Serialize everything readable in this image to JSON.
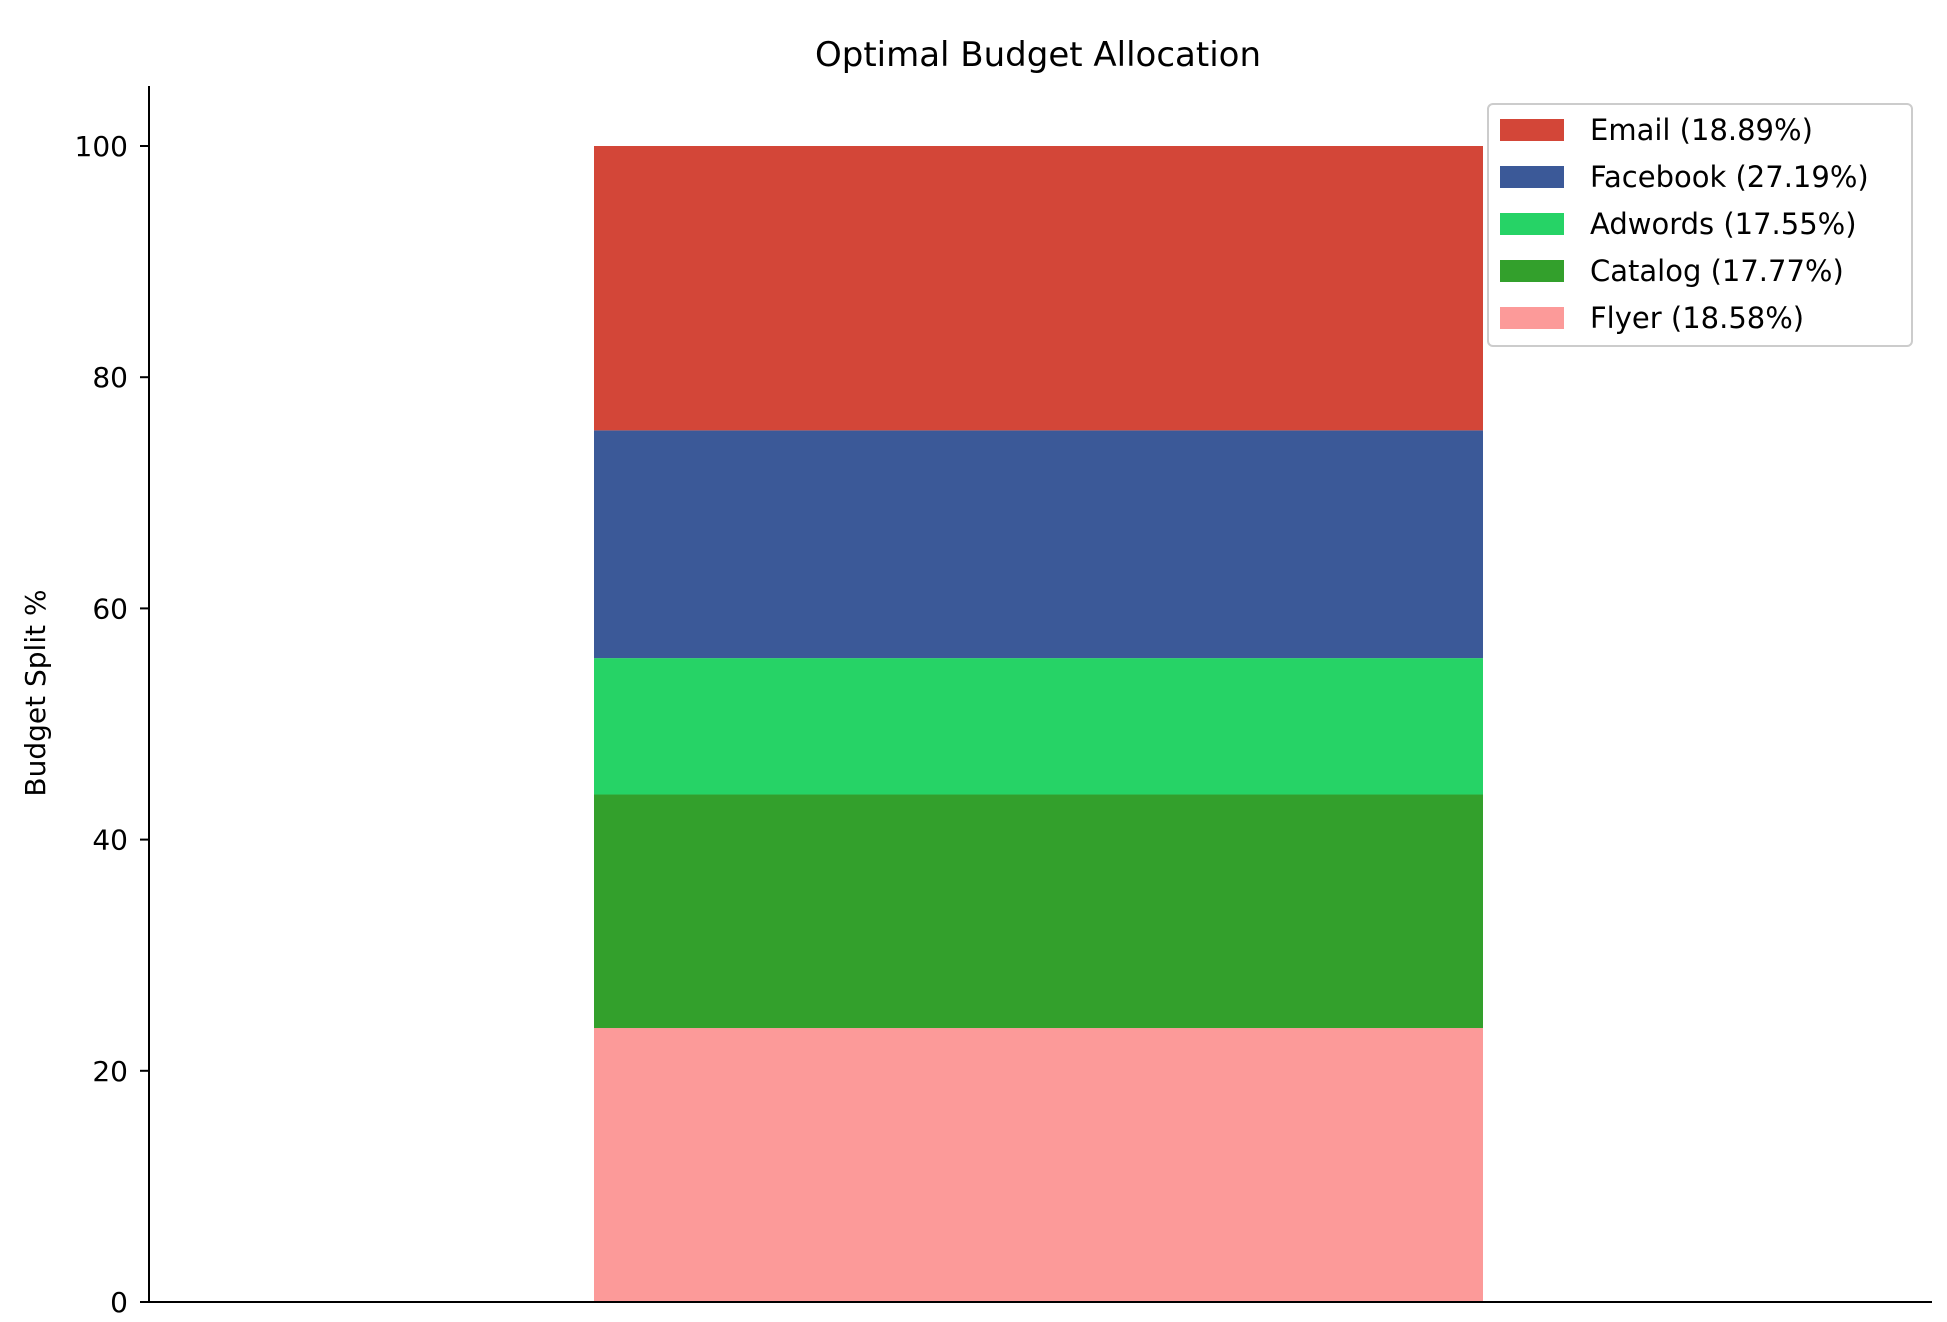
{
  "chart_data": {
    "type": "bar",
    "stacked": true,
    "title": "Optimal Budget Allocation",
    "xlabel": "",
    "ylabel": "Budget Split %",
    "ylim": [
      0,
      105
    ],
    "yticks": [
      0,
      20,
      40,
      60,
      80,
      100
    ],
    "grid": false,
    "legend_position": "top-right",
    "categories": [
      ""
    ],
    "series": [
      {
        "name": "Flyer",
        "legend_label": "Flyer (18.58%)",
        "color": "#fc9a99",
        "bottom": 0,
        "values": [
          23.7
        ]
      },
      {
        "name": "Catalog",
        "legend_label": "Catalog (17.77%)",
        "color": "#33a02c",
        "bottom": 23.7,
        "values": [
          20.2
        ]
      },
      {
        "name": "Adwords",
        "legend_label": "Adwords (17.55%)",
        "color": "#26d366",
        "bottom": 43.9,
        "values": [
          11.8
        ]
      },
      {
        "name": "Facebook",
        "legend_label": "Facebook (27.19%)",
        "color": "#3b5998",
        "bottom": 55.7,
        "values": [
          19.7
        ]
      },
      {
        "name": "Email",
        "legend_label": "Email (18.89%)",
        "color": "#d34638",
        "bottom": 75.4,
        "values": [
          24.6
        ]
      }
    ],
    "legend_order": [
      "Email",
      "Facebook",
      "Adwords",
      "Catalog",
      "Flyer"
    ]
  }
}
